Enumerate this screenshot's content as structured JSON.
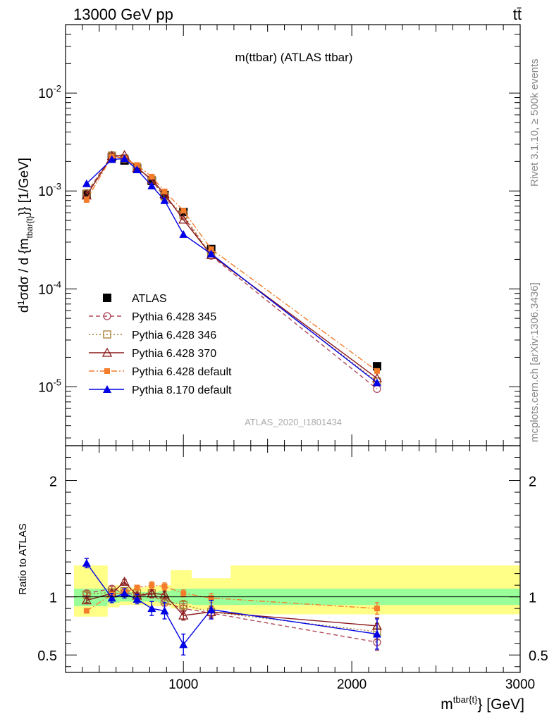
{
  "header": {
    "left": "13000 GeV pp",
    "right": "tt̄"
  },
  "side_text": {
    "top": "Rivet 3.1.10, ≥ 500k events",
    "bottom": "mcplots.cern.ch [arXiv:1306.3436]"
  },
  "chart_data": [
    {
      "type": "line",
      "title": "m(ttbar) (ATLAS ttbar)",
      "watermark": "ATLAS_2020_I1801434",
      "ylabel": "1/σ dσ/d m^{tbar{t}} [1/GeV]",
      "yscale": "log",
      "xlim": [
        300,
        3000
      ],
      "ylim": [
        2.5e-06,
        0.05
      ],
      "ytick_labels": [
        "10^-5",
        "10^-4",
        "10^-3",
        "10^-2"
      ],
      "legend_position": "lower-left",
      "grid": false,
      "x": [
        425,
        575,
        650,
        725,
        812,
        888,
        1000,
        1165,
        2150
      ],
      "series": [
        {
          "name": "ATLAS",
          "color": "#000000",
          "marker": "square-filled",
          "line": "none",
          "values": [
            0.00092,
            0.00221,
            0.00205,
            0.0017,
            0.00127,
            0.00091,
            0.00061,
            0.000255,
            1.62e-05
          ]
        },
        {
          "name": "Pythia 6.428 345",
          "color": "#b0485a",
          "marker": "circle-open",
          "line": "dashed",
          "values": [
            0.00095,
            0.00232,
            0.00212,
            0.00172,
            0.00129,
            0.00086,
            0.00055,
            0.000218,
            9.5e-06
          ]
        },
        {
          "name": "Pythia 6.428 346",
          "color": "#a67d2c",
          "marker": "square-open",
          "line": "dotted",
          "values": [
            0.00094,
            0.0023,
            0.00215,
            0.00175,
            0.0013,
            0.00088,
            0.00057,
            0.000222,
            1.13e-05
          ]
        },
        {
          "name": "Pythia 6.428 370",
          "color": "#8b1a1a",
          "marker": "triangle-open",
          "line": "solid",
          "values": [
            0.0009,
            0.00228,
            0.00232,
            0.00172,
            0.00131,
            0.00093,
            0.00051,
            0.000222,
            1.22e-05
          ]
        },
        {
          "name": "Pythia 6.428 default",
          "color": "#f47d2c",
          "marker": "square-small-filled",
          "line": "dashdot",
          "values": [
            0.00081,
            0.00225,
            0.00214,
            0.00184,
            0.0014,
            0.00099,
            0.00063,
            0.000255,
            1.45e-05
          ]
        },
        {
          "name": "Pythia 8.170 default",
          "color": "#0000e6",
          "marker": "triangle-filled",
          "line": "solid",
          "values": [
            0.00119,
            0.0021,
            0.00214,
            0.00165,
            0.00113,
            0.0008,
            0.00036,
            0.000228,
            1.1e-05
          ]
        }
      ]
    },
    {
      "type": "line",
      "ylabel": "Ratio to ATLAS",
      "xlabel": "m^{tbar{t}} [GeV]",
      "xlim": [
        300,
        3000
      ],
      "ylim": [
        0.35,
        2.3
      ],
      "yticks": [
        0.5,
        1,
        2
      ],
      "ytick_labels": [
        "0.5",
        "1",
        "2"
      ],
      "xticks": [
        1000,
        2000,
        3000
      ],
      "xtick_labels": [
        "1000",
        "2000",
        "3000"
      ],
      "reference_line": 1,
      "bands": [
        {
          "x0": 350,
          "x1": 550,
          "yellow": [
            0.83,
            1.27
          ],
          "green": [
            0.92,
            1.07
          ]
        },
        {
          "x0": 550,
          "x1": 620,
          "yellow": [
            0.91,
            1.1
          ],
          "green": [
            0.95,
            1.05
          ]
        },
        {
          "x0": 620,
          "x1": 700,
          "yellow": [
            0.93,
            1.08
          ],
          "green": [
            0.96,
            1.04
          ]
        },
        {
          "x0": 700,
          "x1": 775,
          "yellow": [
            0.93,
            1.08
          ],
          "green": [
            0.96,
            1.04
          ]
        },
        {
          "x0": 775,
          "x1": 850,
          "yellow": [
            0.92,
            1.09
          ],
          "green": [
            0.96,
            1.04
          ]
        },
        {
          "x0": 850,
          "x1": 925,
          "yellow": [
            0.92,
            1.1
          ],
          "green": [
            0.95,
            1.05
          ]
        },
        {
          "x0": 925,
          "x1": 1050,
          "yellow": [
            0.9,
            1.23
          ],
          "green": [
            0.94,
            1.07
          ]
        },
        {
          "x0": 1050,
          "x1": 1280,
          "yellow": [
            0.89,
            1.16
          ],
          "green": [
            0.93,
            1.07
          ]
        },
        {
          "x0": 1280,
          "x1": 3000,
          "yellow": [
            0.85,
            1.27
          ],
          "green": [
            0.93,
            1.07
          ]
        }
      ],
      "x": [
        425,
        575,
        650,
        725,
        812,
        888,
        1000,
        1165,
        2150
      ],
      "series": [
        {
          "name": "Pythia 6.428 345",
          "color": "#b0485a",
          "marker": "circle-open",
          "line": "dashed",
          "values": [
            1.03,
            1.07,
            1.04,
            1.01,
            1.02,
            0.95,
            0.9,
            0.86,
            0.61
          ],
          "err": [
            0.02,
            0.02,
            0.02,
            0.02,
            0.03,
            0.03,
            0.04,
            0.05,
            0.07
          ]
        },
        {
          "name": "Pythia 6.428 346",
          "color": "#a67d2c",
          "marker": "square-open",
          "line": "dotted",
          "values": [
            1.02,
            1.04,
            1.05,
            1.03,
            1.03,
            0.97,
            0.93,
            0.87,
            0.7
          ],
          "err": [
            0.02,
            0.02,
            0.02,
            0.02,
            0.03,
            0.03,
            0.04,
            0.05,
            0.07
          ]
        },
        {
          "name": "Pythia 6.428 370",
          "color": "#8b1a1a",
          "marker": "triangle-open",
          "line": "solid",
          "values": [
            0.97,
            1.03,
            1.13,
            1.01,
            1.03,
            1.02,
            0.84,
            0.87,
            0.75
          ],
          "err": [
            0.02,
            0.02,
            0.02,
            0.02,
            0.03,
            0.03,
            0.04,
            0.05,
            0.07
          ]
        },
        {
          "name": "Pythia 6.428 default",
          "color": "#f47d2c",
          "marker": "square-small-filled",
          "line": "dashdot",
          "values": [
            0.88,
            1.02,
            1.04,
            1.08,
            1.1,
            1.09,
            1.03,
            0.99,
            0.9
          ],
          "err": [
            0.02,
            0.02,
            0.02,
            0.02,
            0.03,
            0.03,
            0.03,
            0.04,
            0.05
          ]
        },
        {
          "name": "Pythia 8.170 default",
          "color": "#0000e6",
          "marker": "triangle-filled",
          "line": "solid",
          "values": [
            1.29,
            0.99,
            1.03,
            0.98,
            0.9,
            0.88,
            0.59,
            0.89,
            0.68
          ],
          "err": [
            0.04,
            0.04,
            0.04,
            0.04,
            0.06,
            0.07,
            0.09,
            0.08,
            0.13
          ]
        }
      ]
    }
  ]
}
